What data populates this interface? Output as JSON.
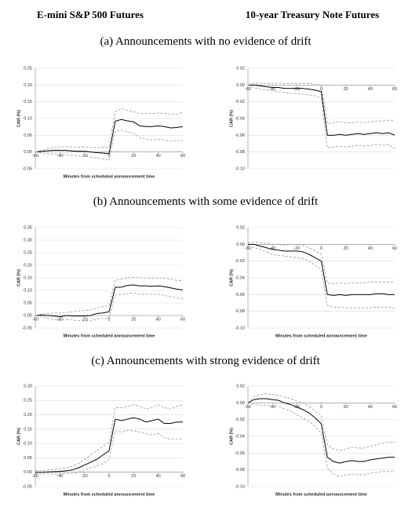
{
  "header": {
    "left": "E-mini S&P 500 Futures",
    "right": "10-year Treasury Note Futures"
  },
  "sections": [
    "(a) Announcements with no evidence of drift",
    "(b) Announcements with some evidence of drift",
    "(c) Announcements with strong evidence of drift"
  ],
  "chart_data": [
    {
      "type": "line",
      "ylabel": "CAR (%)",
      "xlabel": "Minutes from scheduled announcement time",
      "x": [
        -60,
        -55,
        -50,
        -45,
        -40,
        -35,
        -30,
        -25,
        -20,
        -15,
        -10,
        -5,
        0,
        5,
        10,
        15,
        20,
        25,
        30,
        35,
        40,
        45,
        50,
        55,
        60
      ],
      "series": [
        {
          "color": "#000000",
          "style": "solid",
          "values": [
            0,
            0.002,
            0.004,
            0.005,
            0.005,
            0.005,
            0.003,
            0.002,
            0.002,
            0,
            -0.002,
            -0.003,
            -0.005,
            0.092,
            0.097,
            0.093,
            0.09,
            0.078,
            0.076,
            0.076,
            0.078,
            0.076,
            0.072,
            0.073,
            0.076
          ]
        },
        {
          "color": "#999999",
          "style": "dashed",
          "values": [
            0,
            0.005,
            0.01,
            0.014,
            0.015,
            0.016,
            0.015,
            0.014,
            0.015,
            0.014,
            0.013,
            0.014,
            0.015,
            0.12,
            0.13,
            0.125,
            0.12,
            0.115,
            0.115,
            0.115,
            0.117,
            0.115,
            0.112,
            0.113,
            0.118
          ]
        },
        {
          "color": "#999999",
          "style": "dashed",
          "values": [
            0,
            -0.003,
            -0.005,
            -0.006,
            -0.007,
            -0.008,
            -0.01,
            -0.012,
            -0.013,
            -0.015,
            -0.018,
            -0.02,
            -0.025,
            0.062,
            0.065,
            0.06,
            0.055,
            0.042,
            0.038,
            0.036,
            0.038,
            0.036,
            0.032,
            0.033,
            0.035
          ]
        }
      ],
      "xlim": [
        -60,
        60
      ],
      "xticks": [
        -60,
        -40,
        -20,
        0,
        20,
        40,
        60
      ],
      "ylim": [
        -0.05,
        0.25
      ],
      "yticks": [
        0.25,
        {
          "value": 0.2,
          "label": "0.20"
        },
        0.15,
        {
          "value": 0.1,
          "label": "0.10"
        },
        0.05,
        {
          "value": 0,
          "label": "0.00"
        },
        -0.05
      ],
      "grid": true
    },
    {
      "type": "line",
      "ylabel": "CAR (%)",
      "x": [
        -60,
        -55,
        -50,
        -45,
        -40,
        -35,
        -30,
        -25,
        -20,
        -15,
        -10,
        -5,
        0,
        5,
        10,
        15,
        20,
        25,
        30,
        35,
        40,
        45,
        50,
        55,
        60
      ],
      "series": [
        {
          "color": "#000000",
          "style": "solid",
          "values": [
            0,
            0,
            -0.001,
            -0.002,
            -0.003,
            -0.003,
            -0.004,
            -0.004,
            -0.004,
            -0.004,
            -0.005,
            -0.006,
            -0.008,
            -0.06,
            -0.06,
            -0.059,
            -0.06,
            -0.059,
            -0.058,
            -0.059,
            -0.058,
            -0.057,
            -0.058,
            -0.057,
            -0.06
          ]
        },
        {
          "color": "#999999",
          "style": "dashed",
          "values": [
            0,
            0.002,
            0.002,
            0.002,
            0.002,
            0.002,
            0.002,
            0.002,
            0.002,
            0.002,
            0.002,
            0.001,
            0,
            -0.046,
            -0.045,
            -0.044,
            -0.045,
            -0.045,
            -0.044,
            -0.045,
            -0.044,
            -0.043,
            -0.043,
            -0.042,
            -0.043
          ]
        },
        {
          "color": "#999999",
          "style": "dashed",
          "values": [
            0,
            -0.003,
            -0.005,
            -0.006,
            -0.007,
            -0.008,
            -0.009,
            -0.01,
            -0.01,
            -0.011,
            -0.012,
            -0.013,
            -0.016,
            -0.075,
            -0.074,
            -0.073,
            -0.074,
            -0.073,
            -0.072,
            -0.073,
            -0.072,
            -0.071,
            -0.072,
            -0.071,
            -0.076
          ]
        }
      ],
      "xlim": [
        -60,
        60
      ],
      "xticks": [
        -60,
        -40,
        -20,
        0,
        20,
        40,
        60
      ],
      "ylim": [
        -0.1,
        0.02
      ],
      "yticks": [
        0.02,
        {
          "value": 0,
          "label": "0.00"
        },
        -0.02,
        -0.04,
        -0.06,
        -0.08,
        {
          "value": -0.1,
          "label": "-0.10"
        }
      ],
      "grid": true
    },
    {
      "type": "line",
      "ylabel": "CAR (%)",
      "xlabel": "Minutes from scheduled announcement time",
      "x": [
        -60,
        -55,
        -50,
        -45,
        -40,
        -35,
        -30,
        -25,
        -20,
        -15,
        -10,
        -5,
        0,
        5,
        10,
        15,
        20,
        25,
        30,
        35,
        40,
        45,
        50,
        55,
        60
      ],
      "series": [
        {
          "color": "#000000",
          "style": "solid",
          "values": [
            0,
            0.002,
            0,
            -0.002,
            -0.005,
            0,
            -0.002,
            -0.002,
            -0.002,
            0,
            0.008,
            0.01,
            0.015,
            0.112,
            0.113,
            0.12,
            0.122,
            0.118,
            0.118,
            0.116,
            0.118,
            0.115,
            0.11,
            0.105,
            0.102
          ]
        },
        {
          "color": "#999999",
          "style": "dashed",
          "values": [
            0,
            0.005,
            0.008,
            0.01,
            0.01,
            0.012,
            0.015,
            0.018,
            0.02,
            0.022,
            0.03,
            0.035,
            0.04,
            0.14,
            0.145,
            0.15,
            0.152,
            0.15,
            0.15,
            0.148,
            0.15,
            0.148,
            0.145,
            0.14,
            0.138
          ]
        },
        {
          "color": "#999999",
          "style": "dashed",
          "values": [
            0,
            -0.005,
            -0.01,
            -0.015,
            -0.02,
            -0.015,
            -0.018,
            -0.02,
            -0.022,
            -0.02,
            -0.015,
            -0.012,
            -0.01,
            0.082,
            0.082,
            0.088,
            0.09,
            0.085,
            0.085,
            0.084,
            0.085,
            0.08,
            0.075,
            0.07,
            0.066
          ]
        }
      ],
      "xlim": [
        -60,
        60
      ],
      "xticks": [
        -60,
        -40,
        -20,
        0,
        20,
        40,
        60
      ],
      "ylim": [
        -0.05,
        0.35
      ],
      "yticks": [
        0.35,
        {
          "value": 0.3,
          "label": "0.30"
        },
        0.25,
        {
          "value": 0.2,
          "label": "0.20"
        },
        0.15,
        {
          "value": 0.1,
          "label": "0.10"
        },
        0.05,
        {
          "value": 0,
          "label": "0.00"
        },
        -0.05
      ],
      "grid": true
    },
    {
      "type": "line",
      "ylabel": "CAR (%)",
      "xlabel": "Minutes from scheduled announcement time",
      "x": [
        -60,
        -55,
        -50,
        -45,
        -40,
        -35,
        -30,
        -25,
        -20,
        -15,
        -10,
        -5,
        0,
        5,
        10,
        15,
        20,
        25,
        30,
        35,
        40,
        45,
        50,
        55,
        60
      ],
      "series": [
        {
          "color": "#000000",
          "style": "solid",
          "values": [
            0,
            0,
            -0.002,
            -0.004,
            -0.006,
            -0.007,
            -0.008,
            -0.008,
            -0.008,
            -0.009,
            -0.012,
            -0.016,
            -0.02,
            -0.06,
            -0.061,
            -0.06,
            -0.061,
            -0.06,
            -0.06,
            -0.06,
            -0.06,
            -0.059,
            -0.059,
            -0.06,
            -0.06
          ]
        },
        {
          "color": "#999999",
          "style": "dashed",
          "values": [
            0.002,
            0.003,
            0.002,
            0.001,
            0,
            0,
            -0.001,
            0,
            0,
            -0.001,
            -0.004,
            -0.008,
            -0.012,
            -0.046,
            -0.047,
            -0.046,
            -0.047,
            -0.046,
            -0.046,
            -0.046,
            -0.045,
            -0.045,
            -0.045,
            -0.045,
            -0.045
          ]
        },
        {
          "color": "#999999",
          "style": "dashed",
          "values": [
            -0.002,
            -0.004,
            -0.006,
            -0.009,
            -0.012,
            -0.013,
            -0.014,
            -0.015,
            -0.016,
            -0.017,
            -0.02,
            -0.025,
            -0.03,
            -0.073,
            -0.075,
            -0.075,
            -0.076,
            -0.076,
            -0.076,
            -0.076,
            -0.076,
            -0.075,
            -0.075,
            -0.075,
            -0.076
          ]
        }
      ],
      "xlim": [
        -60,
        60
      ],
      "xticks": [
        -60,
        -40,
        -20,
        0,
        20,
        40,
        60
      ],
      "ylim": [
        -0.1,
        0.02
      ],
      "yticks": [
        0.02,
        {
          "value": 0,
          "label": "0.00"
        },
        -0.02,
        -0.04,
        -0.06,
        -0.08,
        {
          "value": -0.1,
          "label": "-0.10"
        }
      ],
      "grid": true
    },
    {
      "type": "line",
      "ylabel": "CAR (%)",
      "xlabel": "Minutes from scheduled announcement time",
      "x": [
        -60,
        -55,
        -50,
        -45,
        -40,
        -35,
        -30,
        -25,
        -20,
        -15,
        -10,
        -5,
        0,
        5,
        10,
        15,
        20,
        25,
        30,
        35,
        40,
        45,
        50,
        55,
        60
      ],
      "series": [
        {
          "color": "#000000",
          "style": "solid",
          "values": [
            0,
            0,
            0.001,
            0.002,
            0.003,
            0.005,
            0.008,
            0.015,
            0.025,
            0.035,
            0.045,
            0.06,
            0.075,
            0.185,
            0.18,
            0.185,
            0.19,
            0.185,
            0.175,
            0.18,
            0.185,
            0.17,
            0.17,
            0.175,
            0.175
          ]
        },
        {
          "color": "#999999",
          "style": "dashed",
          "values": [
            0.005,
            0.006,
            0.008,
            0.01,
            0.012,
            0.015,
            0.02,
            0.03,
            0.045,
            0.06,
            0.075,
            0.09,
            0.105,
            0.225,
            0.225,
            0.23,
            0.235,
            0.23,
            0.22,
            0.225,
            0.235,
            0.225,
            0.22,
            0.23,
            0.235
          ]
        },
        {
          "color": "#999999",
          "style": "dashed",
          "values": [
            -0.005,
            -0.006,
            -0.006,
            -0.007,
            -0.006,
            -0.005,
            -0.004,
            0,
            0.008,
            0.015,
            0.022,
            0.03,
            0.045,
            0.145,
            0.14,
            0.145,
            0.145,
            0.14,
            0.135,
            0.13,
            0.135,
            0.12,
            0.115,
            0.115,
            0.115
          ]
        }
      ],
      "xlim": [
        -60,
        60
      ],
      "xticks": [
        -60,
        -40,
        -20,
        0,
        20,
        40,
        60
      ],
      "ylim": [
        -0.05,
        0.3
      ],
      "yticks": [
        {
          "value": 0.3,
          "label": "0.30"
        },
        0.25,
        {
          "value": 0.2,
          "label": "0.20"
        },
        0.15,
        {
          "value": 0.1,
          "label": "0.10"
        },
        0.05,
        {
          "value": 0,
          "label": "0.00"
        },
        -0.05
      ],
      "grid": true
    },
    {
      "type": "line",
      "ylabel": "CAR (%)",
      "xlabel": "Minutes from scheduled announcement time",
      "x": [
        -60,
        -55,
        -50,
        -45,
        -40,
        -35,
        -30,
        -25,
        -20,
        -15,
        -10,
        -5,
        0,
        5,
        10,
        15,
        20,
        25,
        30,
        35,
        40,
        45,
        50,
        55,
        60
      ],
      "series": [
        {
          "color": "#000000",
          "style": "solid",
          "values": [
            0,
            0.004,
            0.005,
            0.005,
            0.004,
            0.003,
            0,
            -0.002,
            -0.005,
            -0.008,
            -0.012,
            -0.018,
            -0.025,
            -0.065,
            -0.07,
            -0.072,
            -0.07,
            -0.069,
            -0.07,
            -0.07,
            -0.068,
            -0.067,
            -0.066,
            -0.065,
            -0.065
          ]
        },
        {
          "color": "#999999",
          "style": "dashed",
          "values": [
            0,
            0.008,
            0.01,
            0.011,
            0.01,
            0.009,
            0.007,
            0.005,
            0.002,
            0,
            -0.004,
            -0.01,
            -0.015,
            -0.05,
            -0.055,
            -0.057,
            -0.055,
            -0.053,
            -0.054,
            -0.054,
            -0.052,
            -0.05,
            -0.048,
            -0.047,
            -0.047
          ]
        },
        {
          "color": "#999999",
          "style": "dashed",
          "values": [
            0,
            -0.002,
            -0.003,
            -0.003,
            -0.003,
            -0.004,
            -0.007,
            -0.01,
            -0.014,
            -0.018,
            -0.022,
            -0.028,
            -0.036,
            -0.078,
            -0.085,
            -0.088,
            -0.086,
            -0.085,
            -0.086,
            -0.086,
            -0.084,
            -0.083,
            -0.082,
            -0.082,
            -0.082
          ]
        }
      ],
      "xlim": [
        -60,
        60
      ],
      "xticks": [
        -60,
        -40,
        -20,
        0,
        20,
        40,
        60
      ],
      "ylim": [
        -0.1,
        0.02
      ],
      "yticks": [
        0.02,
        {
          "value": 0,
          "label": "0.00"
        },
        -0.02,
        -0.04,
        -0.06,
        -0.08,
        {
          "value": -0.1,
          "label": "-0.10"
        }
      ],
      "grid": true
    }
  ]
}
